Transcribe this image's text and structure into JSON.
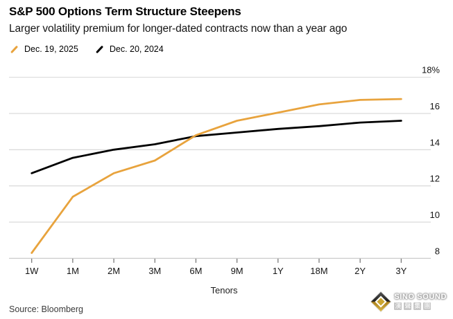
{
  "header": {
    "title": "S&P 500 Options Term Structure Steepens",
    "subtitle": "Larger volatility premium for longer-dated contracts now than a year ago"
  },
  "legend": [
    {
      "label": "Dec. 19, 2025",
      "color": "#E8A33D"
    },
    {
      "label": "Dec. 20, 2024",
      "color": "#000000"
    }
  ],
  "chart_data": {
    "type": "line",
    "title": "S&P 500 Options Term Structure Steepens",
    "subtitle": "Larger volatility premium for longer-dated contracts now than a year ago",
    "categories": [
      "1W",
      "1M",
      "2M",
      "3M",
      "6M",
      "9M",
      "1Y",
      "18M",
      "2Y",
      "3Y"
    ],
    "series": [
      {
        "name": "Dec. 19, 2025",
        "color": "#E8A33D",
        "values": [
          8.3,
          11.4,
          12.7,
          13.4,
          14.8,
          15.6,
          16.05,
          16.5,
          16.75,
          16.8
        ]
      },
      {
        "name": "Dec. 20, 2024",
        "color": "#000000",
        "values": [
          12.7,
          13.55,
          14.0,
          14.3,
          14.75,
          14.95,
          15.15,
          15.3,
          15.5,
          15.6
        ]
      }
    ],
    "xlabel": "Tenors",
    "ylabel": "",
    "unit": "%",
    "ylim": [
      8,
      18
    ],
    "y_ticks": [
      {
        "value": 18,
        "label": "18%"
      },
      {
        "value": 16,
        "label": "16"
      },
      {
        "value": 14,
        "label": "14"
      },
      {
        "value": 12,
        "label": "12"
      },
      {
        "value": 10,
        "label": "10"
      },
      {
        "value": 8,
        "label": "8"
      }
    ],
    "grid": "horizontal",
    "legend_position": "top-left"
  },
  "footer": {
    "source": "Source: Bloomberg"
  },
  "watermark": {
    "name": "SINO SOUND",
    "cjk": "漢聲集團"
  }
}
